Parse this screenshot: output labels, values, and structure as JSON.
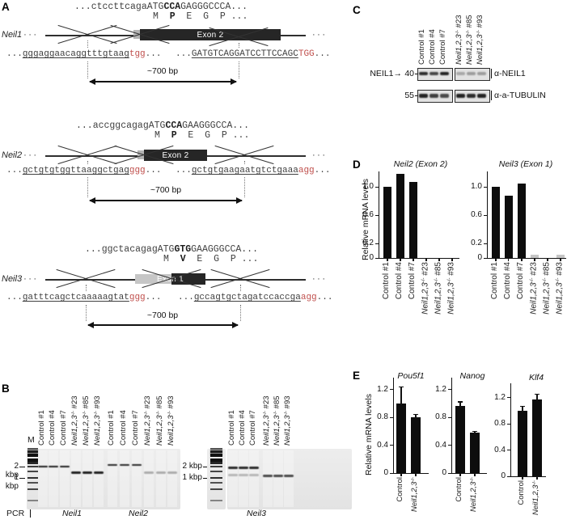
{
  "panelA": {
    "letter": "A",
    "ellipsis": "···",
    "genes": [
      {
        "name": "Neil1",
        "seq": {
          "pre": "...ctccttcaga",
          "start": "ATG",
          "codon": "CCA",
          "post": "GAGGGCCCA..."
        },
        "aa": {
          "pre": "M  ",
          "bold": "P",
          "post": "  E  G  P ..."
        },
        "exon_label": "Exon 2",
        "grna_left": {
          "ellipsis_pre": "...",
          "guide": "gggaggaacaggtttgtaag",
          "pam": "tgg",
          "ellipsis_post": "..."
        },
        "grna_right": {
          "ellipsis_pre": "...",
          "guide": "GATGTCAGGATCCTTCCAGC",
          "pam": "TGG",
          "ellipsis_post": "..."
        },
        "size_label": "~700 bp"
      },
      {
        "name": "Neil2",
        "seq": {
          "pre": "...accggcagag",
          "start": "ATG",
          "codon": "CCA",
          "post": "GAAGGGCCA..."
        },
        "aa": {
          "pre": "M  ",
          "bold": "P",
          "post": "  E  G  P ..."
        },
        "exon_label": "Exon 2",
        "grna_left": {
          "ellipsis_pre": "...",
          "guide": "gctgtgtggttaaggctgag",
          "pam": "ggg",
          "ellipsis_post": "..."
        },
        "grna_right": {
          "ellipsis_pre": "...",
          "guide": "gctgtgaagaatgtctgaaa",
          "pam": "agg",
          "ellipsis_post": "..."
        },
        "size_label": "~700 bp"
      },
      {
        "name": "Neil3",
        "seq": {
          "pre": "...ggctacagag",
          "start": "ATG",
          "codon": "GTG",
          "post": "GAAGGGCCA..."
        },
        "aa": {
          "pre": "M  ",
          "bold": "V",
          "post": "  E  G  P ..."
        },
        "exon_label": "Exon 1",
        "grna_left": {
          "ellipsis_pre": "...",
          "guide": "gatttcagctcaaaaagtat",
          "pam": "ggg",
          "ellipsis_post": "..."
        },
        "grna_right": {
          "ellipsis_pre": "...",
          "guide": "gccagtgctagatccaccga",
          "pam": "agg",
          "ellipsis_post": "..."
        },
        "size_label": "~700 bp"
      }
    ]
  },
  "lanes": {
    "full": [
      {
        "text": "Control #1"
      },
      {
        "text": "Control #4"
      },
      {
        "text": "Control #7"
      },
      {
        "base": "Neil1,2,3",
        "sup": "-/-",
        "suffix": " #23"
      },
      {
        "base": "Neil1,2,3",
        "sup": "-/-",
        "suffix": " #85"
      },
      {
        "base": "Neil1,2,3",
        "sup": "-/-",
        "suffix": " #93"
      }
    ],
    "pair": [
      {
        "text": "Control"
      },
      {
        "base": "Neil1,2,3",
        "sup": "-/-",
        "suffix": ""
      }
    ]
  },
  "panelB": {
    "letter": "B",
    "marker_label": "M",
    "pcr_label": "PCR",
    "size_labels": [
      "2 kbp",
      "1 kbp"
    ],
    "gene_labels": [
      "Neil1",
      "Neil2",
      "Neil3"
    ],
    "marker_kbp": [
      6,
      5,
      4,
      3,
      2.5,
      2,
      1.5,
      1,
      0.75,
      0.5,
      0.25
    ],
    "bands": {
      "neil1": {
        "control_kbp": 2.0,
        "control_alpha": 0.95,
        "ko_kbp": 1.4,
        "ko_alpha": 0.95
      },
      "neil2": {
        "control_kbp": 2.2,
        "control_alpha": 0.9,
        "ko_kbp": 1.4,
        "ko_alpha": 0.3
      },
      "neil3": {
        "control_kbp": 1.85,
        "control_alpha": 0.9,
        "control_secondary_kbp": 1.2,
        "control_secondary_alpha": 0.25,
        "ko_kbp": 1.15,
        "ko_alpha": 0.75
      }
    }
  },
  "panelC": {
    "letter": "C",
    "rows": [
      {
        "protein": "NEIL1",
        "arrow": "→",
        "mw": "40",
        "antibody": "α-NEIL1",
        "intensity": [
          [
            0.95,
            0.82,
            1
          ],
          [
            0.3,
            0.36,
            0.36
          ]
        ]
      },
      {
        "protein": "",
        "arrow": "",
        "mw": "55",
        "antibody": "α-a-TUBULIN",
        "intensity": [
          [
            1,
            0.85,
            0.8
          ],
          [
            1,
            0.95,
            1
          ]
        ]
      }
    ]
  },
  "panelD": {
    "letter": "D",
    "ylabel": "Relative mRNA levels"
  },
  "panelE": {
    "letter": "E",
    "ylabel": "Relative mRNA levels"
  },
  "chart_data": [
    {
      "id": "neil2-exon2",
      "type": "bar",
      "title": "Neil2 (Exon 2)",
      "ylabel": "Relative mRNA levels",
      "categories": [
        "Control #1",
        "Control #4",
        "Control #7",
        "Neil1,2,3-/- #23",
        "Neil1,2,3-/- #85",
        "Neil1,2,3-/- #93"
      ],
      "values": [
        1.0,
        1.18,
        1.07,
        0,
        0,
        0
      ],
      "bar_colors": [
        "#0d0d0d",
        "#0d0d0d",
        "#0d0d0d",
        "#c6c6c6",
        "#c6c6c6",
        "#c6c6c6"
      ],
      "yticks": [
        0,
        0.2,
        0.6,
        1.0
      ],
      "ylim": [
        0,
        1.25
      ],
      "grid": false,
      "legend": "none"
    },
    {
      "id": "neil3-exon1",
      "type": "bar",
      "title": "Neil3 (Exon 1)",
      "ylabel": "Relative mRNA levels",
      "categories": [
        "Control #1",
        "Control #4",
        "Control #7",
        "Neil1,2,3-/- #23",
        "Neil1,2,3-/- #85",
        "Neil1,2,3-/- #93"
      ],
      "values": [
        1.0,
        0.88,
        1.05,
        0.05,
        0,
        0.05
      ],
      "bar_colors": [
        "#0d0d0d",
        "#0d0d0d",
        "#0d0d0d",
        "#c6c6c6",
        "#c6c6c6",
        "#c6c6c6"
      ],
      "yticks": [
        0,
        0.2,
        0.6,
        1.0
      ],
      "ylim": [
        0,
        1.25
      ],
      "grid": false,
      "legend": "none"
    },
    {
      "id": "pou5f1",
      "type": "bar",
      "title": "Pou5f1",
      "ylabel": "Relative mRNA levels",
      "categories": [
        "Control",
        "Neil1,2,3-/-"
      ],
      "values": [
        1.0,
        0.8
      ],
      "errors": [
        0.25,
        0.05
      ],
      "bar_colors": [
        "#0d0d0d",
        "#0d0d0d"
      ],
      "yticks": [
        0,
        0.4,
        0.8,
        1.2
      ],
      "ylim": [
        0,
        1.4
      ],
      "grid": false,
      "legend": "none"
    },
    {
      "id": "nanog",
      "type": "bar",
      "title": "Nanog",
      "ylabel": "Relative mRNA levels",
      "categories": [
        "Control",
        "Neil1,2,3-/-"
      ],
      "values": [
        0.97,
        0.58
      ],
      "errors": [
        0.06,
        0.03
      ],
      "bar_colors": [
        "#0d0d0d",
        "#0d0d0d"
      ],
      "yticks": [
        0,
        0.4,
        0.8,
        1.2
      ],
      "ylim": [
        0,
        1.4
      ],
      "grid": false,
      "legend": "none"
    },
    {
      "id": "klf4",
      "type": "bar",
      "title": "Klf4",
      "ylabel": "Relative mRNA levels",
      "categories": [
        "Control",
        "Neil1,2,3-/-"
      ],
      "values": [
        1.0,
        1.17
      ],
      "errors": [
        0.07,
        0.09
      ],
      "bar_colors": [
        "#0d0d0d",
        "#0d0d0d"
      ],
      "yticks": [
        0,
        0.4,
        0.8,
        1.2
      ],
      "ylim": [
        0,
        1.4
      ],
      "grid": false,
      "legend": "none"
    }
  ]
}
